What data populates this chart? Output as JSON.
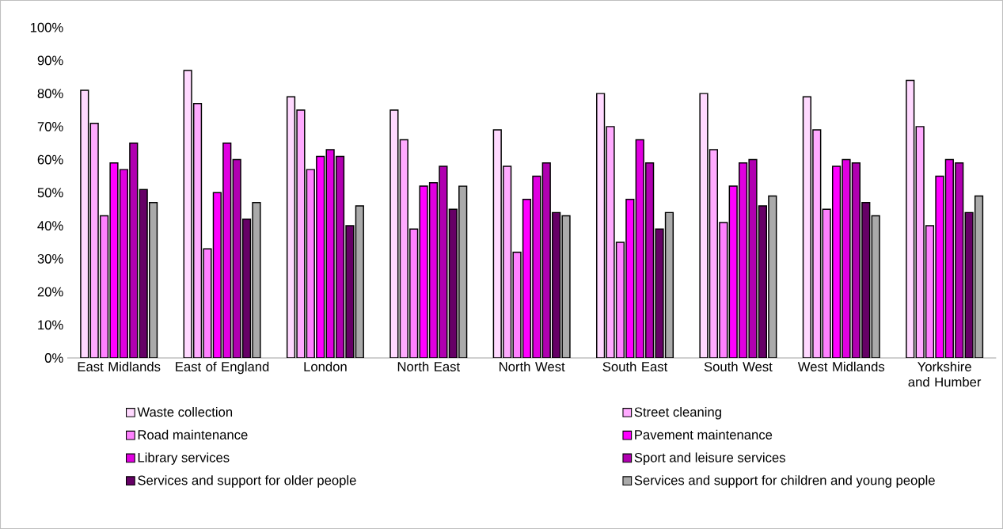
{
  "chart_data": {
    "type": "bar",
    "categories": [
      "East Midlands",
      "East of England",
      "London",
      "North East",
      "North West",
      "South East",
      "South West",
      "West Midlands",
      "Yorkshire and Humber"
    ],
    "ylim": [
      0,
      100
    ],
    "yticks": [
      {
        "value": 0,
        "label": "0%"
      },
      {
        "value": 10,
        "label": "10%"
      },
      {
        "value": 20,
        "label": "20%"
      },
      {
        "value": 30,
        "label": "30%"
      },
      {
        "value": 40,
        "label": "40%"
      },
      {
        "value": 50,
        "label": "50%"
      },
      {
        "value": 60,
        "label": "60%"
      },
      {
        "value": 70,
        "label": "70%"
      },
      {
        "value": 80,
        "label": "80%"
      },
      {
        "value": 90,
        "label": "90%"
      },
      {
        "value": 100,
        "label": "100%"
      }
    ],
    "legend": "bottom",
    "series": [
      {
        "name": "Waste collection",
        "color": "#ffd9ff",
        "values": [
          81,
          87,
          79,
          75,
          69,
          80,
          80,
          79,
          84
        ]
      },
      {
        "name": "Street cleaning",
        "color": "#ffaaff",
        "values": [
          71,
          77,
          75,
          66,
          58,
          70,
          63,
          69,
          70
        ]
      },
      {
        "name": "Road maintenance",
        "color": "#ff80ff",
        "values": [
          43,
          33,
          57,
          39,
          32,
          35,
          41,
          45,
          40
        ]
      },
      {
        "name": "Pavement maintenance",
        "color": "#ff00ff",
        "values": [
          59,
          50,
          61,
          52,
          48,
          48,
          52,
          58,
          55
        ]
      },
      {
        "name": "Library services",
        "color": "#e000e0",
        "values": [
          57,
          65,
          63,
          53,
          55,
          66,
          59,
          60,
          60
        ]
      },
      {
        "name": "Sport and leisure services",
        "color": "#b000b0",
        "values": [
          65,
          60,
          61,
          58,
          59,
          59,
          60,
          59,
          59
        ]
      },
      {
        "name": "Services and support for older people",
        "color": "#660066",
        "values": [
          51,
          42,
          40,
          45,
          44,
          39,
          46,
          47,
          44
        ]
      },
      {
        "name": "Services and support for children and young people",
        "color": "#aaaaaa",
        "values": [
          47,
          47,
          46,
          52,
          43,
          44,
          49,
          43,
          49
        ]
      }
    ]
  }
}
